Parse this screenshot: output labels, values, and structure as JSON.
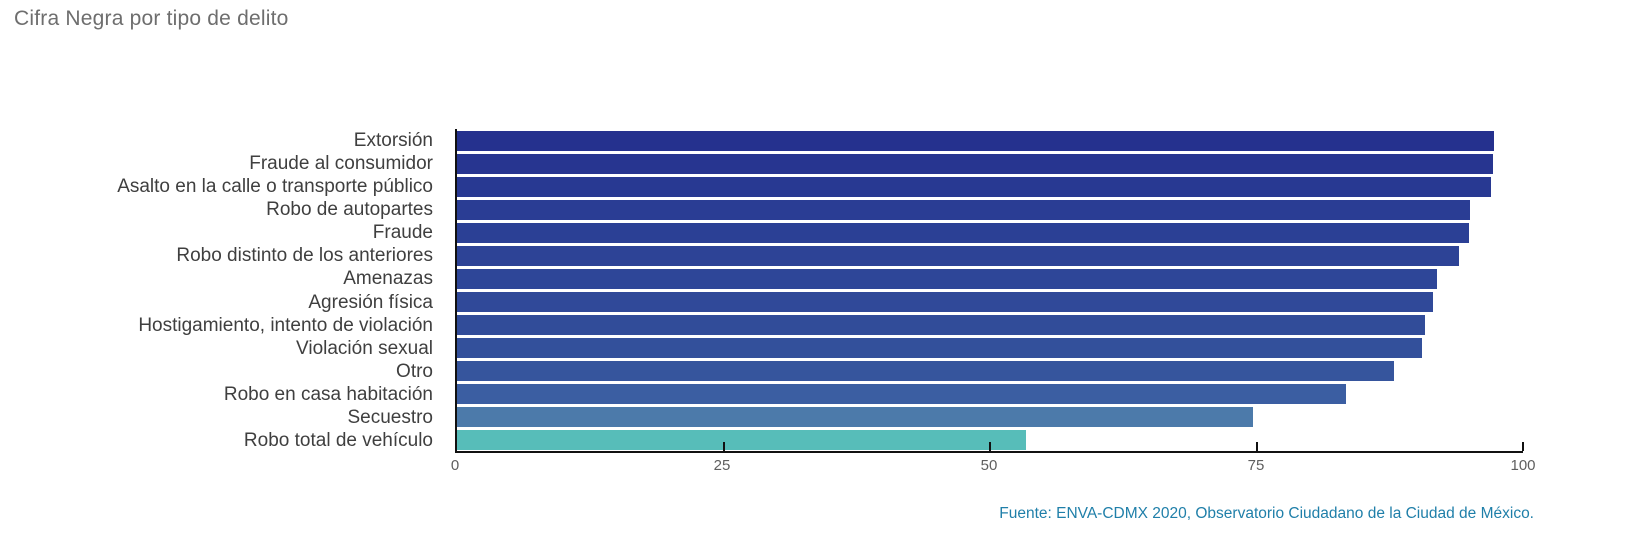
{
  "title": "Cifra Negra por tipo de delito",
  "source": "Fuente: ENVA-CDMX 2020, Observatorio Ciudadano de la Ciudad de México.",
  "colors": {
    "background": "#ffffff",
    "title_text": "#6e6e6e",
    "category_label_text": "#3f3f3f",
    "axis_line": "#111111",
    "tick_label_text": "#5f5f5f",
    "source_text": "#1f7fa9"
  },
  "chart_data": {
    "type": "bar",
    "orientation": "horizontal",
    "title": "Cifra Negra por tipo de delito",
    "xlabel": "",
    "ylabel": "",
    "xlim": [
      0,
      100
    ],
    "x_ticks": [
      0,
      25,
      50,
      75,
      100
    ],
    "x_tick_labels": [
      "0",
      "25",
      "50",
      "75",
      "100"
    ],
    "grid": false,
    "legend": "none",
    "categories": [
      "Extorsión",
      "Fraude al consumidor",
      "Asalto en la calle o transporte público",
      "Robo de autopartes",
      "Fraude",
      "Robo distinto de los anteriores",
      "Amenazas",
      "Agresión física",
      "Hostigamiento, intento de violación",
      "Violación sexual",
      "Otro",
      "Robo en casa habitación",
      "Secuestro",
      "Robo total de vehículo"
    ],
    "values": [
      97.3,
      97.2,
      97.0,
      95.0,
      94.9,
      94.0,
      91.9,
      91.6,
      90.8,
      90.5,
      87.9,
      83.4,
      74.7,
      53.4
    ],
    "bar_colors": [
      "#25318e",
      "#273590",
      "#283992",
      "#2a3d94",
      "#2b4095",
      "#2d4396",
      "#2e4698",
      "#304999",
      "#314c99",
      "#33509b",
      "#36559d",
      "#3b5ea2",
      "#4c7aaa",
      "#57bdb9"
    ]
  }
}
